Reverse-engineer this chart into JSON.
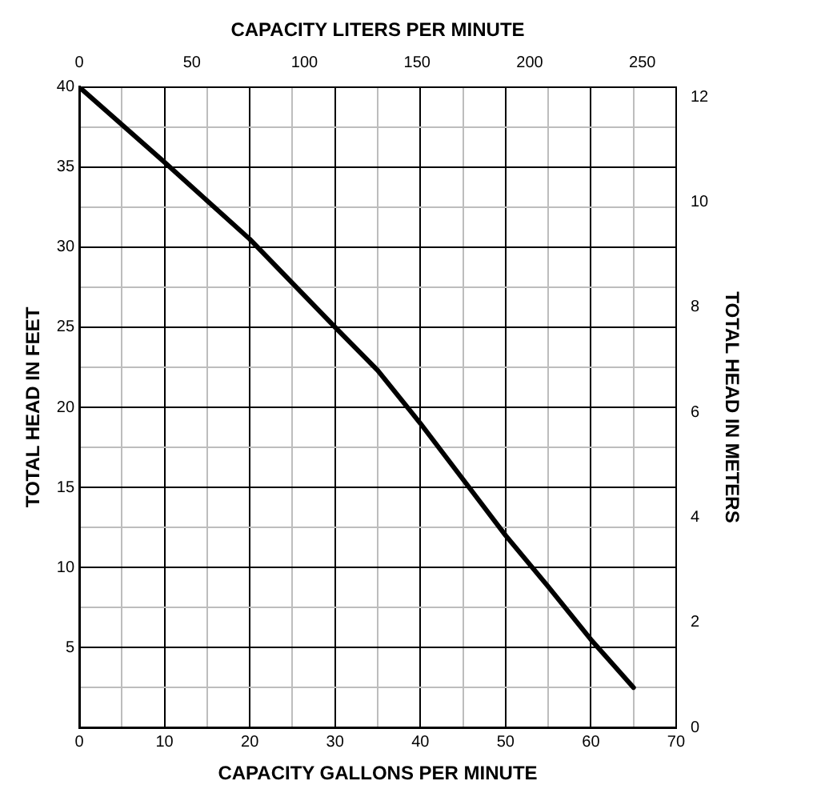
{
  "chart_data": {
    "type": "line",
    "xlabel": "CAPACITY GALLONS PER MINUTE",
    "ylabel": "TOTAL HEAD IN FEET",
    "y2label": "TOTAL HEAD IN METERS",
    "x2label": "CAPACITY LITERS PER MINUTE",
    "x": [
      0,
      10,
      20,
      30,
      35,
      40,
      45,
      50,
      55,
      60,
      65
    ],
    "series": [
      {
        "color": "#000000",
        "values": [
          40,
          35.3,
          30.5,
          25,
          22.3,
          19,
          15.5,
          12,
          8.8,
          5.5,
          2.5
        ]
      }
    ],
    "xlim": [
      0,
      70
    ],
    "xticks": [
      0,
      {
        "value": 5,
        "label": null
      },
      10,
      {
        "value": 15,
        "label": null
      },
      20,
      {
        "value": 25,
        "label": null
      },
      30,
      {
        "value": 35,
        "label": null
      },
      40,
      {
        "value": 45,
        "label": null
      },
      50,
      {
        "value": 55,
        "label": null
      },
      60,
      {
        "value": 65,
        "label": null
      },
      70
    ],
    "ylim": [
      0,
      40
    ],
    "yticks": [
      {
        "value": 0,
        "label": null
      },
      {
        "value": 2.5,
        "label": null
      },
      5,
      {
        "value": 7.5,
        "label": null
      },
      10,
      {
        "value": 12.5,
        "label": null
      },
      15,
      {
        "value": 17.5,
        "label": null
      },
      20,
      {
        "value": 22.5,
        "label": null
      },
      25,
      {
        "value": 27.5,
        "label": null
      },
      30,
      {
        "value": 32.5,
        "label": null
      },
      35,
      {
        "value": 37.5,
        "label": null
      },
      40
    ],
    "x2lim": [
      0,
      265
    ],
    "x2ticks": [
      0,
      50,
      100,
      150,
      200,
      250
    ],
    "y2lim": [
      0,
      12.19
    ],
    "y2ticks": [
      0,
      2,
      4,
      6,
      8,
      10,
      12
    ],
    "grid": true,
    "legend": false,
    "marker": "none",
    "line_style": "solid"
  }
}
